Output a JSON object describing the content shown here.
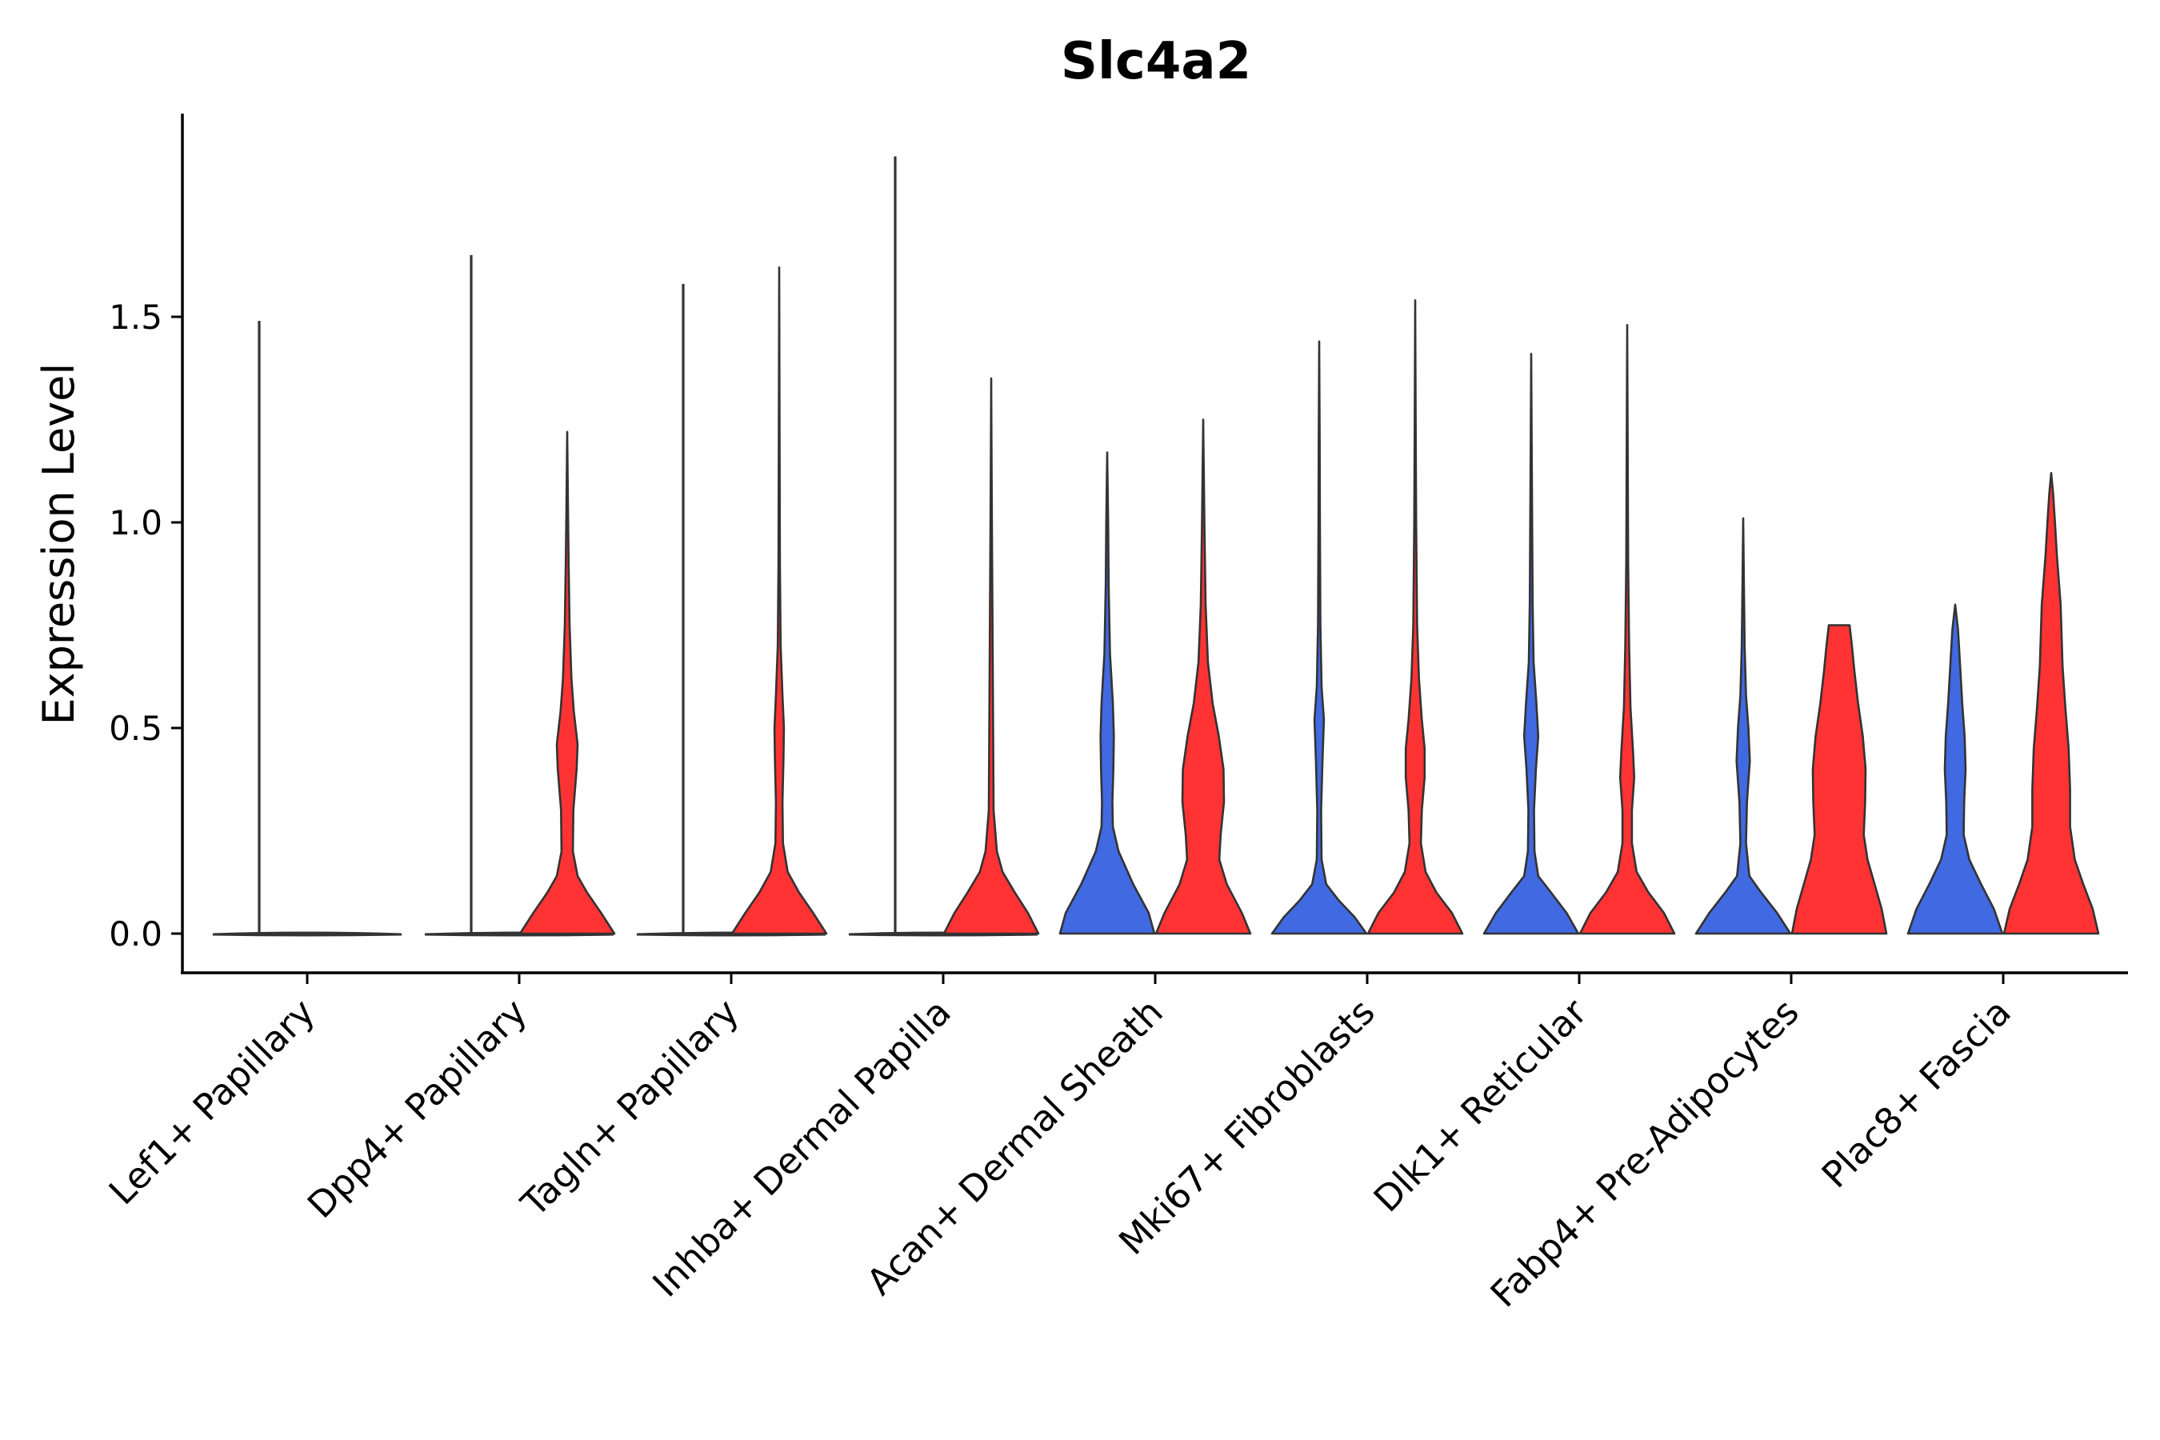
{
  "chart_data": {
    "type": "violin",
    "title": "Slc4a2",
    "xlabel": "",
    "ylabel": "Expression Level",
    "ylim": [
      -0.1,
      2.0
    ],
    "yticks": [
      "0.0",
      "0.5",
      "1.0",
      "1.5"
    ],
    "categories": [
      "Lef1+ Papillary",
      "Dpp4+ Papillary",
      "Tagln+ Papillary",
      "Inhba+ Dermal Papilla",
      "Acan+ Dermal Sheath",
      "Mki67+ Fibroblasts",
      "Dlk1+ Reticular",
      "Fabp4+ Pre-Adipocytes",
      "Plac8+ Fascia"
    ],
    "colors": {
      "group1": "#4169E1",
      "group2": "#FF3333",
      "outline": "#333333"
    },
    "series": [
      {
        "name": "group1",
        "color": "#4169E1",
        "max": [
          1.49,
          1.65,
          1.58,
          1.89,
          1.17,
          1.44,
          1.41,
          1.01,
          0.8
        ],
        "profiles": [
          [
            [
              0,
              1.0
            ],
            [
              0.005,
              0.02
            ],
            [
              1.49,
              0.0
            ]
          ],
          [
            [
              0,
              1.0
            ],
            [
              0.005,
              0.02
            ],
            [
              1.65,
              0.0
            ]
          ],
          [
            [
              0,
              1.0
            ],
            [
              0.005,
              0.02
            ],
            [
              1.58,
              0.0
            ]
          ],
          [
            [
              0,
              1.0
            ],
            [
              0.005,
              0.02
            ],
            [
              1.89,
              0.0
            ]
          ],
          [
            [
              0,
              1.0
            ],
            [
              0.05,
              0.88
            ],
            [
              0.12,
              0.55
            ],
            [
              0.2,
              0.24
            ],
            [
              0.26,
              0.12
            ],
            [
              0.32,
              0.11
            ],
            [
              0.4,
              0.13
            ],
            [
              0.48,
              0.14
            ],
            [
              0.56,
              0.12
            ],
            [
              0.68,
              0.06
            ],
            [
              0.85,
              0.03
            ],
            [
              1.0,
              0.02
            ],
            [
              1.17,
              0.0
            ]
          ],
          [
            [
              0,
              1.0
            ],
            [
              0.04,
              0.75
            ],
            [
              0.08,
              0.42
            ],
            [
              0.12,
              0.15
            ],
            [
              0.18,
              0.05
            ],
            [
              0.3,
              0.04
            ],
            [
              0.42,
              0.07
            ],
            [
              0.52,
              0.1
            ],
            [
              0.6,
              0.05
            ],
            [
              0.75,
              0.025
            ],
            [
              1.0,
              0.015
            ],
            [
              1.2,
              0.01
            ],
            [
              1.44,
              0.0
            ]
          ],
          [
            [
              0,
              1.0
            ],
            [
              0.05,
              0.75
            ],
            [
              0.1,
              0.42
            ],
            [
              0.14,
              0.15
            ],
            [
              0.2,
              0.07
            ],
            [
              0.3,
              0.06
            ],
            [
              0.4,
              0.1
            ],
            [
              0.48,
              0.15
            ],
            [
              0.56,
              0.11
            ],
            [
              0.66,
              0.05
            ],
            [
              0.8,
              0.03
            ],
            [
              1.0,
              0.02
            ],
            [
              1.2,
              0.01
            ],
            [
              1.41,
              0.0
            ]
          ],
          [
            [
              0,
              1.0
            ],
            [
              0.05,
              0.72
            ],
            [
              0.1,
              0.38
            ],
            [
              0.14,
              0.13
            ],
            [
              0.22,
              0.06
            ],
            [
              0.32,
              0.08
            ],
            [
              0.42,
              0.14
            ],
            [
              0.5,
              0.11
            ],
            [
              0.58,
              0.06
            ],
            [
              0.7,
              0.03
            ],
            [
              0.85,
              0.015
            ],
            [
              1.01,
              0.0
            ]
          ],
          [
            [
              0,
              1.0
            ],
            [
              0.06,
              0.82
            ],
            [
              0.12,
              0.55
            ],
            [
              0.18,
              0.3
            ],
            [
              0.24,
              0.18
            ],
            [
              0.32,
              0.19
            ],
            [
              0.4,
              0.22
            ],
            [
              0.48,
              0.2
            ],
            [
              0.56,
              0.15
            ],
            [
              0.66,
              0.1
            ],
            [
              0.74,
              0.06
            ],
            [
              0.8,
              0.0
            ]
          ]
        ]
      },
      {
        "name": "group2",
        "color": "#FF3333",
        "max": [
          null,
          1.22,
          1.62,
          1.35,
          1.25,
          1.54,
          1.48,
          0.75,
          1.12
        ],
        "profiles": [
          null,
          [
            [
              0,
              1.0
            ],
            [
              0.05,
              0.72
            ],
            [
              0.1,
              0.42
            ],
            [
              0.14,
              0.22
            ],
            [
              0.2,
              0.12
            ],
            [
              0.3,
              0.13
            ],
            [
              0.4,
              0.2
            ],
            [
              0.46,
              0.22
            ],
            [
              0.54,
              0.14
            ],
            [
              0.62,
              0.09
            ],
            [
              0.75,
              0.05
            ],
            [
              0.9,
              0.03
            ],
            [
              1.05,
              0.015
            ],
            [
              1.22,
              0.0
            ]
          ],
          [
            [
              0,
              1.0
            ],
            [
              0.05,
              0.72
            ],
            [
              0.1,
              0.42
            ],
            [
              0.15,
              0.18
            ],
            [
              0.22,
              0.08
            ],
            [
              0.32,
              0.07
            ],
            [
              0.42,
              0.09
            ],
            [
              0.5,
              0.1
            ],
            [
              0.58,
              0.07
            ],
            [
              0.7,
              0.03
            ],
            [
              0.9,
              0.015
            ],
            [
              1.2,
              0.008
            ],
            [
              1.62,
              0.0
            ]
          ],
          [
            [
              0,
              1.0
            ],
            [
              0.05,
              0.78
            ],
            [
              0.1,
              0.5
            ],
            [
              0.15,
              0.24
            ],
            [
              0.2,
              0.12
            ],
            [
              0.3,
              0.05
            ],
            [
              0.5,
              0.04
            ],
            [
              0.7,
              0.03
            ],
            [
              0.9,
              0.02
            ],
            [
              1.1,
              0.01
            ],
            [
              1.35,
              0.0
            ]
          ],
          [
            [
              0,
              1.0
            ],
            [
              0.05,
              0.82
            ],
            [
              0.12,
              0.5
            ],
            [
              0.18,
              0.34
            ],
            [
              0.24,
              0.37
            ],
            [
              0.32,
              0.44
            ],
            [
              0.4,
              0.43
            ],
            [
              0.48,
              0.33
            ],
            [
              0.56,
              0.2
            ],
            [
              0.66,
              0.1
            ],
            [
              0.8,
              0.05
            ],
            [
              1.0,
              0.025
            ],
            [
              1.25,
              0.0
            ]
          ],
          [
            [
              0,
              1.0
            ],
            [
              0.05,
              0.78
            ],
            [
              0.1,
              0.45
            ],
            [
              0.15,
              0.22
            ],
            [
              0.22,
              0.12
            ],
            [
              0.3,
              0.14
            ],
            [
              0.38,
              0.2
            ],
            [
              0.45,
              0.2
            ],
            [
              0.52,
              0.14
            ],
            [
              0.62,
              0.08
            ],
            [
              0.75,
              0.04
            ],
            [
              1.0,
              0.02
            ],
            [
              1.25,
              0.01
            ],
            [
              1.54,
              0.0
            ]
          ],
          [
            [
              0,
              1.0
            ],
            [
              0.05,
              0.78
            ],
            [
              0.1,
              0.45
            ],
            [
              0.15,
              0.2
            ],
            [
              0.22,
              0.1
            ],
            [
              0.3,
              0.1
            ],
            [
              0.38,
              0.15
            ],
            [
              0.45,
              0.12
            ],
            [
              0.55,
              0.07
            ],
            [
              0.7,
              0.04
            ],
            [
              0.9,
              0.02
            ],
            [
              1.2,
              0.01
            ],
            [
              1.48,
              0.0
            ]
          ],
          [
            [
              0,
              1.0
            ],
            [
              0.06,
              0.9
            ],
            [
              0.12,
              0.75
            ],
            [
              0.18,
              0.6
            ],
            [
              0.24,
              0.52
            ],
            [
              0.32,
              0.55
            ],
            [
              0.4,
              0.56
            ],
            [
              0.48,
              0.5
            ],
            [
              0.56,
              0.4
            ],
            [
              0.64,
              0.32
            ],
            [
              0.7,
              0.27
            ],
            [
              0.75,
              0.22
            ]
          ],
          [
            [
              0,
              1.0
            ],
            [
              0.06,
              0.88
            ],
            [
              0.12,
              0.68
            ],
            [
              0.18,
              0.5
            ],
            [
              0.26,
              0.4
            ],
            [
              0.35,
              0.4
            ],
            [
              0.45,
              0.37
            ],
            [
              0.55,
              0.3
            ],
            [
              0.65,
              0.24
            ],
            [
              0.8,
              0.2
            ],
            [
              0.92,
              0.12
            ],
            [
              1.0,
              0.08
            ],
            [
              1.07,
              0.04
            ],
            [
              1.12,
              0.0
            ]
          ]
        ]
      }
    ]
  }
}
